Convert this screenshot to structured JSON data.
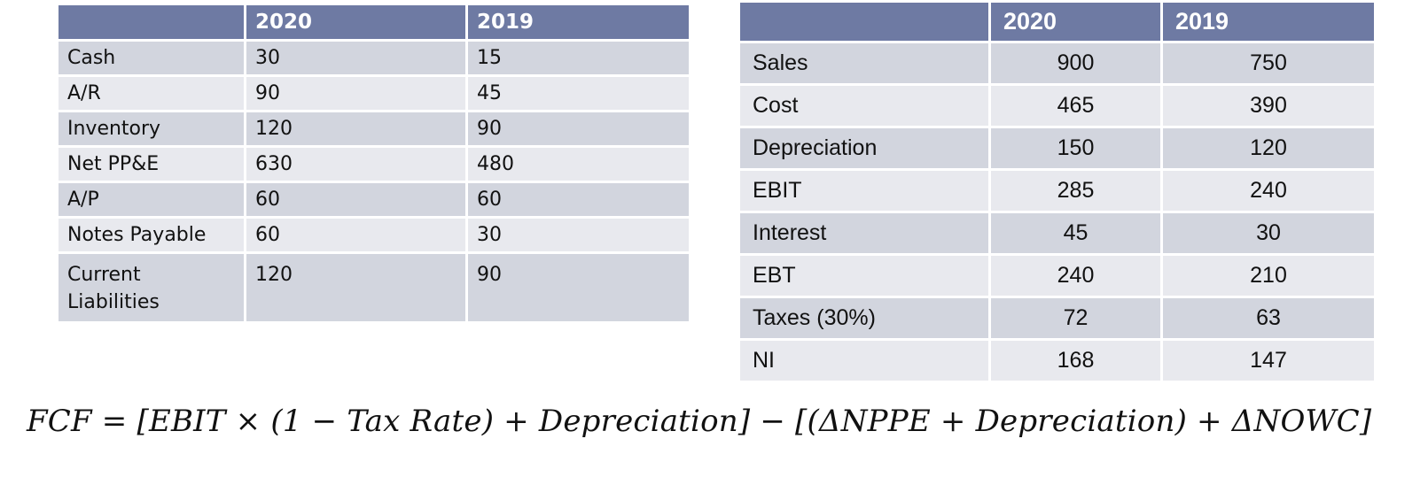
{
  "balance_sheet": {
    "headers": [
      "",
      "2020",
      "2019"
    ],
    "rows": [
      [
        "Cash",
        "30",
        "15"
      ],
      [
        "A/R",
        "90",
        "45"
      ],
      [
        "Inventory",
        "120",
        "90"
      ],
      [
        "Net PP&E",
        "630",
        "480"
      ],
      [
        "A/P",
        "60",
        "60"
      ],
      [
        "Notes Payable",
        "60",
        "30"
      ],
      [
        "Current Liabilities",
        "120",
        "90"
      ]
    ]
  },
  "income_statement": {
    "headers": [
      "",
      "2020",
      "2019"
    ],
    "rows": [
      [
        "Sales",
        "900",
        "750"
      ],
      [
        "Cost",
        "465",
        "390"
      ],
      [
        "Depreciation",
        "150",
        "120"
      ],
      [
        "EBIT",
        "285",
        "240"
      ],
      [
        "Interest",
        "45",
        "30"
      ],
      [
        "EBT",
        "240",
        "210"
      ],
      [
        "Taxes (30%)",
        "72",
        "63"
      ],
      [
        "NI",
        "168",
        "147"
      ]
    ]
  },
  "formula": "FCF = [EBIT × (1 − Tax Rate) + Depreciation] − [(ΔNPPE + Depreciation) + ΔNOWC]"
}
